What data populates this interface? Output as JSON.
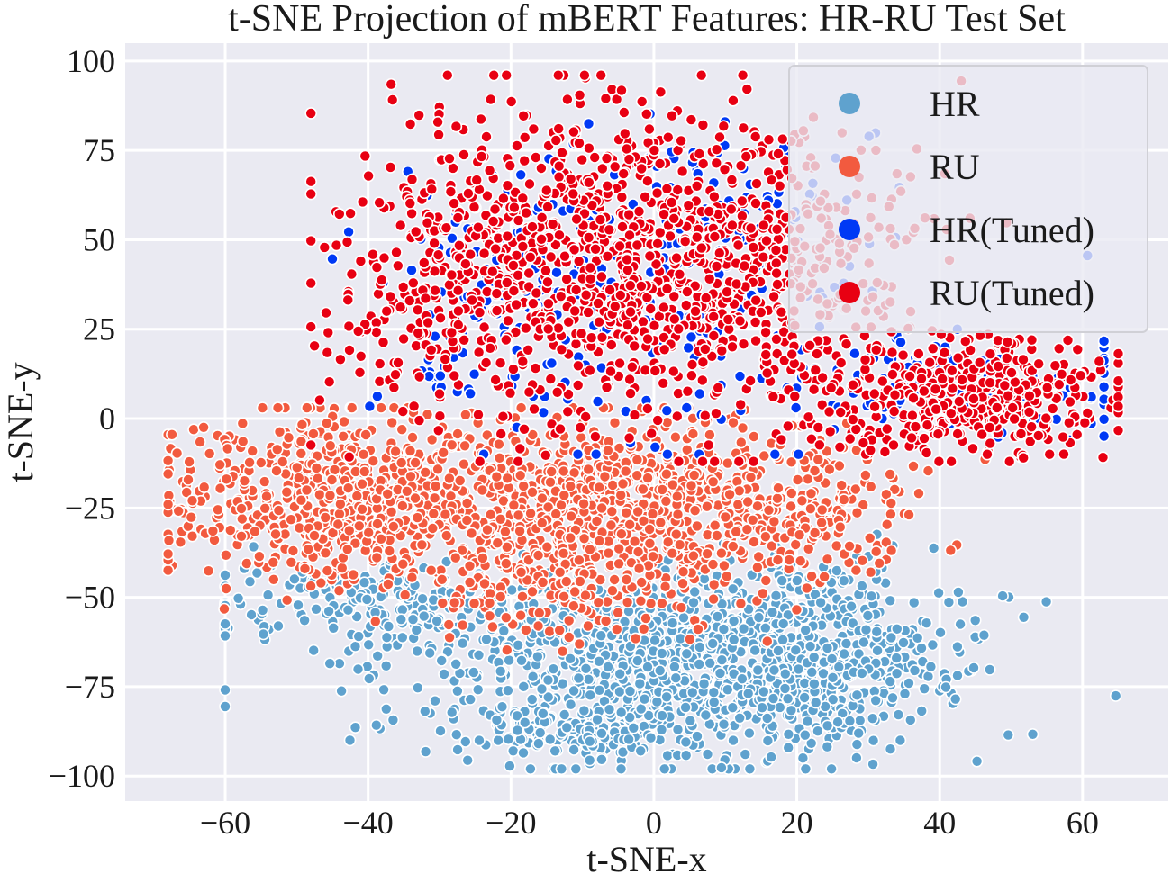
{
  "chart_data": {
    "type": "scatter",
    "title": "t-SNE Projection of mBERT Features: HR-RU Test Set",
    "xlabel": "t-SNE-x",
    "ylabel": "t-SNE-y",
    "xlim": [
      -74,
      72
    ],
    "ylim": [
      -107,
      105
    ],
    "xticks": [
      -60,
      -40,
      -20,
      0,
      20,
      40,
      60
    ],
    "yticks": [
      -100,
      -75,
      -50,
      -25,
      0,
      25,
      50,
      75,
      100
    ],
    "xtick_labels": [
      "−60",
      "−40",
      "−20",
      "0",
      "20",
      "40",
      "60"
    ],
    "ytick_labels": [
      "−100",
      "−75",
      "−50",
      "−25",
      "0",
      "25",
      "50",
      "75",
      "100"
    ],
    "grid": true,
    "background": "#eaeaf2",
    "legend_position": "top-right",
    "series": [
      {
        "name": "HR",
        "color": "#5fa2ce",
        "n_points": 1700,
        "distribution": [
          {
            "cx": 2,
            "cy": -68,
            "sx": 18,
            "sy": 13,
            "w": 0.55
          },
          {
            "cx": 22,
            "cy": -66,
            "sx": 10,
            "sy": 13,
            "w": 0.25
          },
          {
            "cx": -38,
            "cy": -52,
            "sx": 12,
            "sy": 6,
            "w": 0.12
          },
          {
            "cx": -10,
            "cy": -88,
            "sx": 8,
            "sy": 4,
            "w": 0.08
          }
        ],
        "extent": {
          "x": [
            -60,
            65
          ],
          "y": [
            -98,
            -28
          ]
        }
      },
      {
        "name": "RU",
        "color": "#f25a3f",
        "n_points": 1750,
        "distribution": [
          {
            "cx": -5,
            "cy": -22,
            "sx": 17,
            "sy": 11,
            "w": 0.5
          },
          {
            "cx": -45,
            "cy": -22,
            "sx": 11,
            "sy": 12,
            "w": 0.32
          },
          {
            "cx": -15,
            "cy": -45,
            "sx": 12,
            "sy": 8,
            "w": 0.12
          },
          {
            "cx": 20,
            "cy": -30,
            "sx": 8,
            "sy": 8,
            "w": 0.06
          }
        ],
        "extent": {
          "x": [
            -68,
            50
          ],
          "y": [
            -75,
            3
          ]
        }
      },
      {
        "name": "HR(Tuned)",
        "color": "#0039f5",
        "n_points": 450,
        "distribution": [
          {
            "cx": 0,
            "cy": 40,
            "sx": 16,
            "sy": 22,
            "w": 0.6
          },
          {
            "cx": 40,
            "cy": 8,
            "sx": 12,
            "sy": 7,
            "w": 0.25
          },
          {
            "cx": -25,
            "cy": 30,
            "sx": 8,
            "sy": 18,
            "w": 0.15
          }
        ],
        "extent": {
          "x": [
            -45,
            63
          ],
          "y": [
            -10,
            95
          ]
        }
      },
      {
        "name": "RU(Tuned)",
        "color": "#e80012",
        "n_points": 1800,
        "distribution": [
          {
            "cx": -5,
            "cy": 45,
            "sx": 16,
            "sy": 22,
            "w": 0.55
          },
          {
            "cx": 43,
            "cy": 6,
            "sx": 11,
            "sy": 8,
            "w": 0.25
          },
          {
            "cx": -30,
            "cy": 35,
            "sx": 8,
            "sy": 18,
            "w": 0.1
          },
          {
            "cx": 20,
            "cy": 40,
            "sx": 10,
            "sy": 20,
            "w": 0.1
          }
        ],
        "extent": {
          "x": [
            -48,
            65
          ],
          "y": [
            -12,
            96
          ]
        }
      }
    ]
  }
}
